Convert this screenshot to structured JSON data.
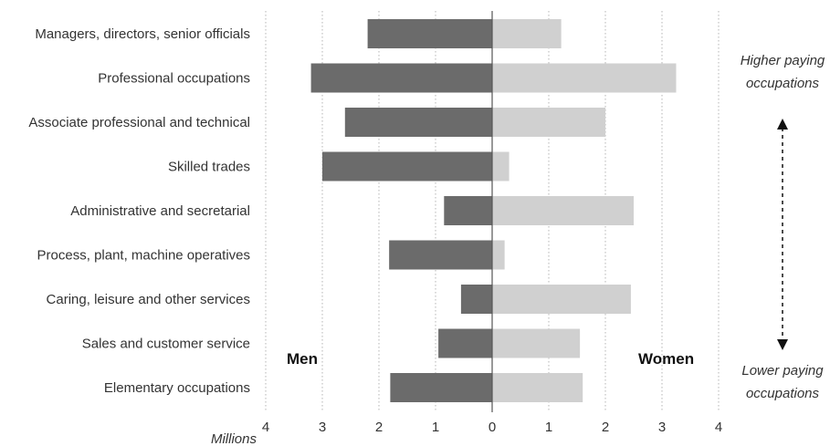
{
  "chart_data": {
    "type": "bar",
    "orientation": "horizontal-diverging",
    "categories": [
      "Managers, directors, senior officials",
      "Professional occupations",
      "Associate professional and technical",
      "Skilled trades",
      "Administrative and secretarial",
      "Process, plant, machine operatives",
      "Caring, leisure and other services",
      "Sales and customer service",
      "Elementary occupations"
    ],
    "series": [
      {
        "name": "Men",
        "color": "#6b6b6b",
        "values": [
          2.2,
          3.2,
          2.6,
          3.0,
          0.85,
          1.82,
          0.55,
          0.95,
          1.8
        ]
      },
      {
        "name": "Women",
        "color": "#d0d0d0",
        "values": [
          1.22,
          3.25,
          2.0,
          0.3,
          2.5,
          0.22,
          2.45,
          1.55,
          1.6
        ]
      }
    ],
    "xlim": [
      -4,
      4
    ],
    "x_tick_labels": [
      "4",
      "3",
      "2",
      "1",
      "0",
      "1",
      "2",
      "3",
      "4"
    ],
    "xlabel": "Millions",
    "grid": "vertical-dotted",
    "side_labels": {
      "left": "Men",
      "right": "Women"
    },
    "annotations": {
      "top": [
        "Higher paying",
        "occupations"
      ],
      "bottom": [
        "Lower paying",
        "occupations"
      ]
    }
  }
}
